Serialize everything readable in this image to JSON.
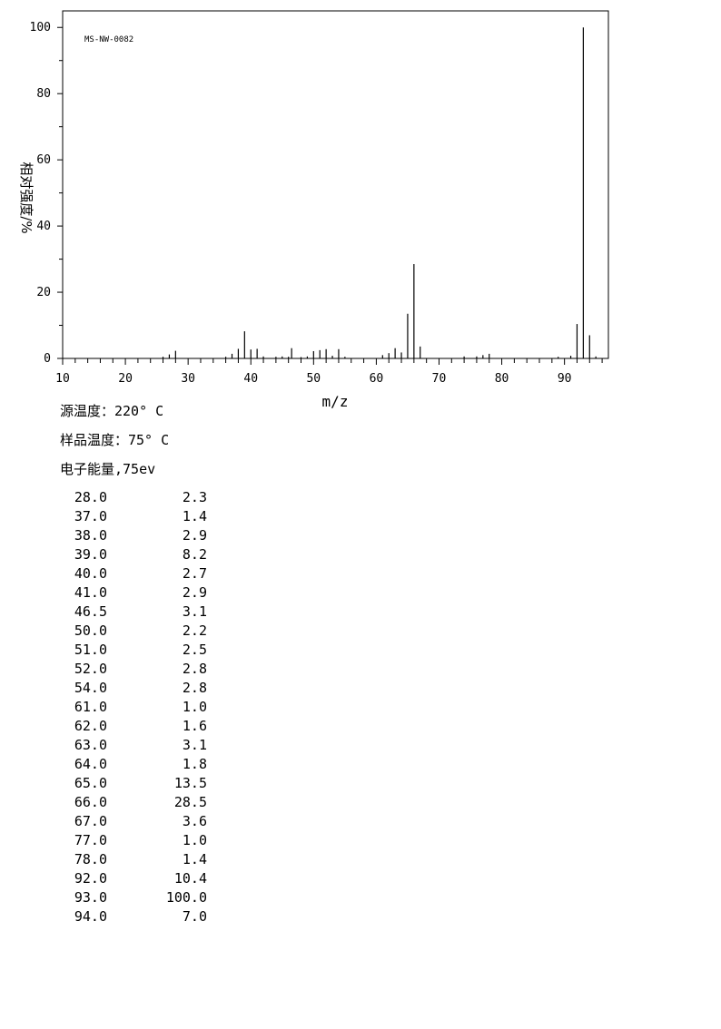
{
  "chart_data": {
    "type": "bar",
    "id_label": "MS-NW-0082",
    "xlabel": "m/z",
    "ylabel": "相对强度/%",
    "xlim": [
      10,
      97
    ],
    "ylim": [
      0,
      105
    ],
    "x_ticks": [
      10,
      20,
      30,
      40,
      50,
      60,
      70,
      80,
      90
    ],
    "y_ticks": [
      0,
      20,
      40,
      60,
      80,
      100
    ],
    "peaks": [
      {
        "mz": 26.0,
        "intensity": 0.5
      },
      {
        "mz": 27.0,
        "intensity": 1.2
      },
      {
        "mz": 28.0,
        "intensity": 2.3
      },
      {
        "mz": 36.0,
        "intensity": 0.5
      },
      {
        "mz": 37.0,
        "intensity": 1.4
      },
      {
        "mz": 38.0,
        "intensity": 2.9
      },
      {
        "mz": 39.0,
        "intensity": 8.2
      },
      {
        "mz": 40.0,
        "intensity": 2.7
      },
      {
        "mz": 41.0,
        "intensity": 2.9
      },
      {
        "mz": 42.0,
        "intensity": 0.6
      },
      {
        "mz": 44.0,
        "intensity": 0.5
      },
      {
        "mz": 45.0,
        "intensity": 0.6
      },
      {
        "mz": 46.0,
        "intensity": 0.5
      },
      {
        "mz": 46.5,
        "intensity": 3.1
      },
      {
        "mz": 48.0,
        "intensity": 0.4
      },
      {
        "mz": 49.0,
        "intensity": 0.6
      },
      {
        "mz": 50.0,
        "intensity": 2.2
      },
      {
        "mz": 51.0,
        "intensity": 2.5
      },
      {
        "mz": 52.0,
        "intensity": 2.8
      },
      {
        "mz": 53.0,
        "intensity": 0.8
      },
      {
        "mz": 54.0,
        "intensity": 2.8
      },
      {
        "mz": 55.0,
        "intensity": 0.5
      },
      {
        "mz": 61.0,
        "intensity": 1.0
      },
      {
        "mz": 62.0,
        "intensity": 1.6
      },
      {
        "mz": 63.0,
        "intensity": 3.1
      },
      {
        "mz": 64.0,
        "intensity": 1.8
      },
      {
        "mz": 65.0,
        "intensity": 13.5
      },
      {
        "mz": 66.0,
        "intensity": 28.5
      },
      {
        "mz": 67.0,
        "intensity": 3.6
      },
      {
        "mz": 74.0,
        "intensity": 0.6
      },
      {
        "mz": 76.0,
        "intensity": 0.6
      },
      {
        "mz": 77.0,
        "intensity": 1.0
      },
      {
        "mz": 78.0,
        "intensity": 1.4
      },
      {
        "mz": 89.0,
        "intensity": 0.5
      },
      {
        "mz": 91.0,
        "intensity": 0.8
      },
      {
        "mz": 92.0,
        "intensity": 10.4
      },
      {
        "mz": 93.0,
        "intensity": 100.0
      },
      {
        "mz": 94.0,
        "intensity": 7.0
      },
      {
        "mz": 95.0,
        "intensity": 0.6
      }
    ],
    "grid": false,
    "legend": "none"
  },
  "conditions": {
    "source_temp": "源温度：220° C",
    "sample_temp": "样品温度：75° C",
    "electron_energy": "电子能量,75ev"
  },
  "peak_table": [
    {
      "mz": "28.0",
      "intensity": "2.3"
    },
    {
      "mz": "37.0",
      "intensity": "1.4"
    },
    {
      "mz": "38.0",
      "intensity": "2.9"
    },
    {
      "mz": "39.0",
      "intensity": "8.2"
    },
    {
      "mz": "40.0",
      "intensity": "2.7"
    },
    {
      "mz": "41.0",
      "intensity": "2.9"
    },
    {
      "mz": "46.5",
      "intensity": "3.1"
    },
    {
      "mz": "50.0",
      "intensity": "2.2"
    },
    {
      "mz": "51.0",
      "intensity": "2.5"
    },
    {
      "mz": "52.0",
      "intensity": "2.8"
    },
    {
      "mz": "54.0",
      "intensity": "2.8"
    },
    {
      "mz": "61.0",
      "intensity": "1.0"
    },
    {
      "mz": "62.0",
      "intensity": "1.6"
    },
    {
      "mz": "63.0",
      "intensity": "3.1"
    },
    {
      "mz": "64.0",
      "intensity": "1.8"
    },
    {
      "mz": "65.0",
      "intensity": "13.5"
    },
    {
      "mz": "66.0",
      "intensity": "28.5"
    },
    {
      "mz": "67.0",
      "intensity": "3.6"
    },
    {
      "mz": "77.0",
      "intensity": "1.0"
    },
    {
      "mz": "78.0",
      "intensity": "1.4"
    },
    {
      "mz": "92.0",
      "intensity": "10.4"
    },
    {
      "mz": "93.0",
      "intensity": "100.0"
    },
    {
      "mz": "94.0",
      "intensity": "7.0"
    }
  ]
}
